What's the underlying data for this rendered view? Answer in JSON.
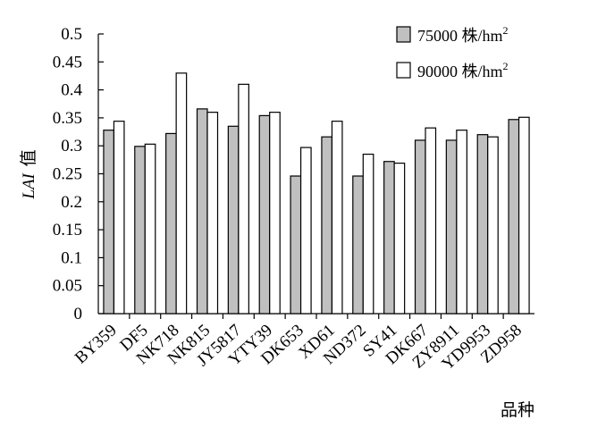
{
  "chart_data": {
    "type": "bar",
    "title": "",
    "xlabel": "品种",
    "ylabel": {
      "main": "LAI",
      "suffix": "值"
    },
    "ylim": [
      0,
      0.5
    ],
    "yticks": [
      "0",
      "0.05",
      "0.1",
      "0.15",
      "0.2",
      "0.25",
      "0.3",
      "0.35",
      "0.4",
      "0.45",
      "0.5"
    ],
    "categories": [
      "BY359",
      "DF5",
      "NK718",
      "NK815",
      "JY5817",
      "YTY39",
      "DK653",
      "XD61",
      "ND372",
      "SY41",
      "DK667",
      "ZY8911",
      "YD9953",
      "ZD958"
    ],
    "series": [
      {
        "name": "75000 株/hm",
        "name_sup": "2",
        "color": "#c0c0c0",
        "values": [
          0.328,
          0.299,
          0.322,
          0.366,
          0.335,
          0.354,
          0.246,
          0.316,
          0.246,
          0.272,
          0.31,
          0.31,
          0.32,
          0.347
        ]
      },
      {
        "name": "90000 株/hm",
        "name_sup": "2",
        "color": "#ffffff",
        "values": [
          0.344,
          0.303,
          0.43,
          0.36,
          0.41,
          0.36,
          0.297,
          0.344,
          0.285,
          0.269,
          0.332,
          0.328,
          0.316,
          0.351
        ]
      }
    ],
    "grid": false,
    "legend": "top-right"
  }
}
